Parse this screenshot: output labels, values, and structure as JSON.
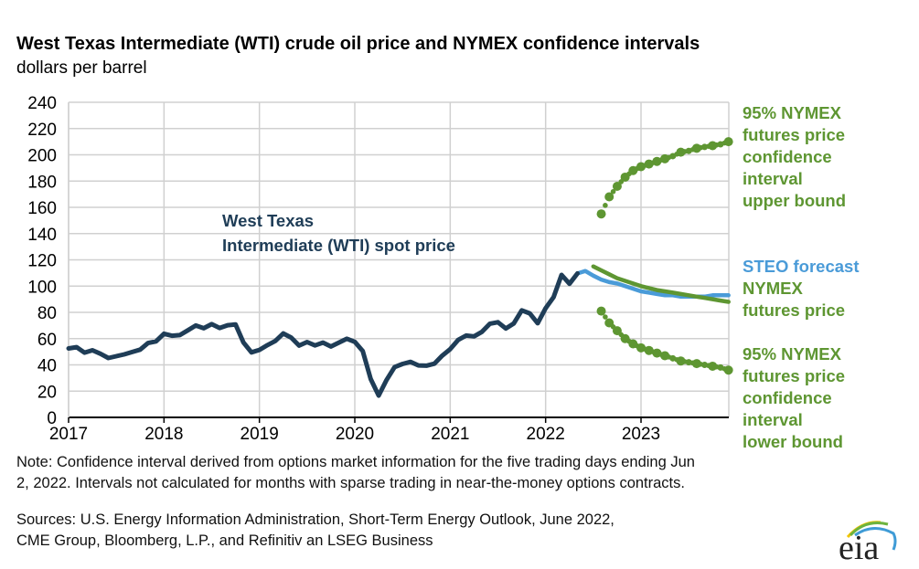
{
  "chart_data": {
    "type": "line",
    "title": "West Texas Intermediate (WTI) crude oil price and NYMEX confidence intervals",
    "ylabel": "dollars per barrel",
    "xlabel": "",
    "ylim": [
      0,
      240
    ],
    "yticks": [
      0,
      20,
      40,
      60,
      80,
      100,
      120,
      140,
      160,
      180,
      200,
      220,
      240
    ],
    "xlim": [
      2017,
      2023.92
    ],
    "xticks": [
      "2017",
      "2018",
      "2019",
      "2020",
      "2021",
      "2022",
      "2023"
    ],
    "grid": true,
    "series": [
      {
        "name": "West Texas Intermediate (WTI) spot price",
        "color": "#1f3d57",
        "start": "2017-01",
        "values": [
          52.5,
          53.5,
          49.3,
          51.1,
          48.5,
          45.2,
          46.6,
          48.0,
          49.8,
          51.6,
          56.6,
          57.9,
          63.7,
          62.2,
          62.7,
          66.3,
          70.0,
          67.9,
          71.0,
          68.1,
          70.2,
          70.8,
          57.0,
          49.5,
          51.4,
          55.0,
          58.2,
          63.9,
          60.8,
          54.7,
          57.4,
          54.8,
          57.0,
          54.0,
          57.0,
          59.9,
          57.5,
          50.5,
          29.2,
          16.6,
          28.6,
          38.3,
          40.7,
          42.3,
          39.6,
          39.4,
          40.9,
          47.0,
          52.0,
          59.0,
          62.3,
          61.7,
          65.2,
          71.4,
          72.5,
          67.7,
          71.6,
          81.5,
          79.2,
          71.7,
          83.2,
          91.6,
          108.5,
          101.8,
          109.6
        ]
      },
      {
        "name": "STEO forecast",
        "color": "#4a9bd8",
        "start": "2022-05",
        "values": [
          109.6,
          111.5,
          108,
          105,
          103,
          102,
          100,
          98,
          96,
          95,
          94,
          93,
          93,
          92,
          92,
          92,
          92,
          93,
          93,
          93
        ]
      },
      {
        "name": "NYMEX futures price",
        "color": "#5e9632",
        "start": "2022-07",
        "values": [
          115,
          112,
          109,
          106,
          104,
          102,
          100,
          98.5,
          97,
          96,
          95,
          94,
          93,
          92,
          91,
          90,
          89,
          88
        ]
      },
      {
        "name": "95% NYMEX futures price confidence interval upper bound",
        "color": "#5e9632",
        "style": "dots",
        "start": "2022-08",
        "values": [
          155,
          168,
          176,
          183,
          188,
          191,
          193,
          195,
          197,
          199,
          202,
          203,
          205,
          206,
          207,
          208,
          210
        ]
      },
      {
        "name": "95% NYMEX futures price confidence interval lower bound",
        "color": "#5e9632",
        "style": "dots",
        "start": "2022-08",
        "values": [
          81,
          72,
          66,
          60,
          56,
          53,
          51,
          49,
          47,
          45,
          43,
          42,
          41,
          40,
          39,
          38,
          36
        ]
      }
    ],
    "annotations": {
      "wti_line1": "West Texas",
      "wti_line2": "Intermediate (WTI) spot price",
      "upper": [
        "95% NYMEX",
        "futures price",
        "confidence",
        "interval",
        "upper bound"
      ],
      "steo": "STEO forecast",
      "nymex": [
        "NYMEX",
        "futures price"
      ],
      "lower": [
        "95% NYMEX",
        "futures price",
        "confidence",
        "interval",
        "lower bound"
      ]
    }
  },
  "header": {
    "title": "West Texas Intermediate (WTI) crude oil price and NYMEX confidence intervals",
    "subtitle": "dollars per barrel"
  },
  "notes": {
    "note1": "Note: Confidence interval derived from options market information for the five trading days ending Jun",
    "note2": "2, 2022. Intervals not calculated for months with sparse trading in near-the-money options contracts.",
    "source1": "Sources: U.S. Energy Information Administration, Short-Term Energy Outlook, June 2022,",
    "source2": "CME Group, Bloomberg, L.P., and Refinitiv an LSEG Business"
  },
  "logo": {
    "text": "eia"
  }
}
